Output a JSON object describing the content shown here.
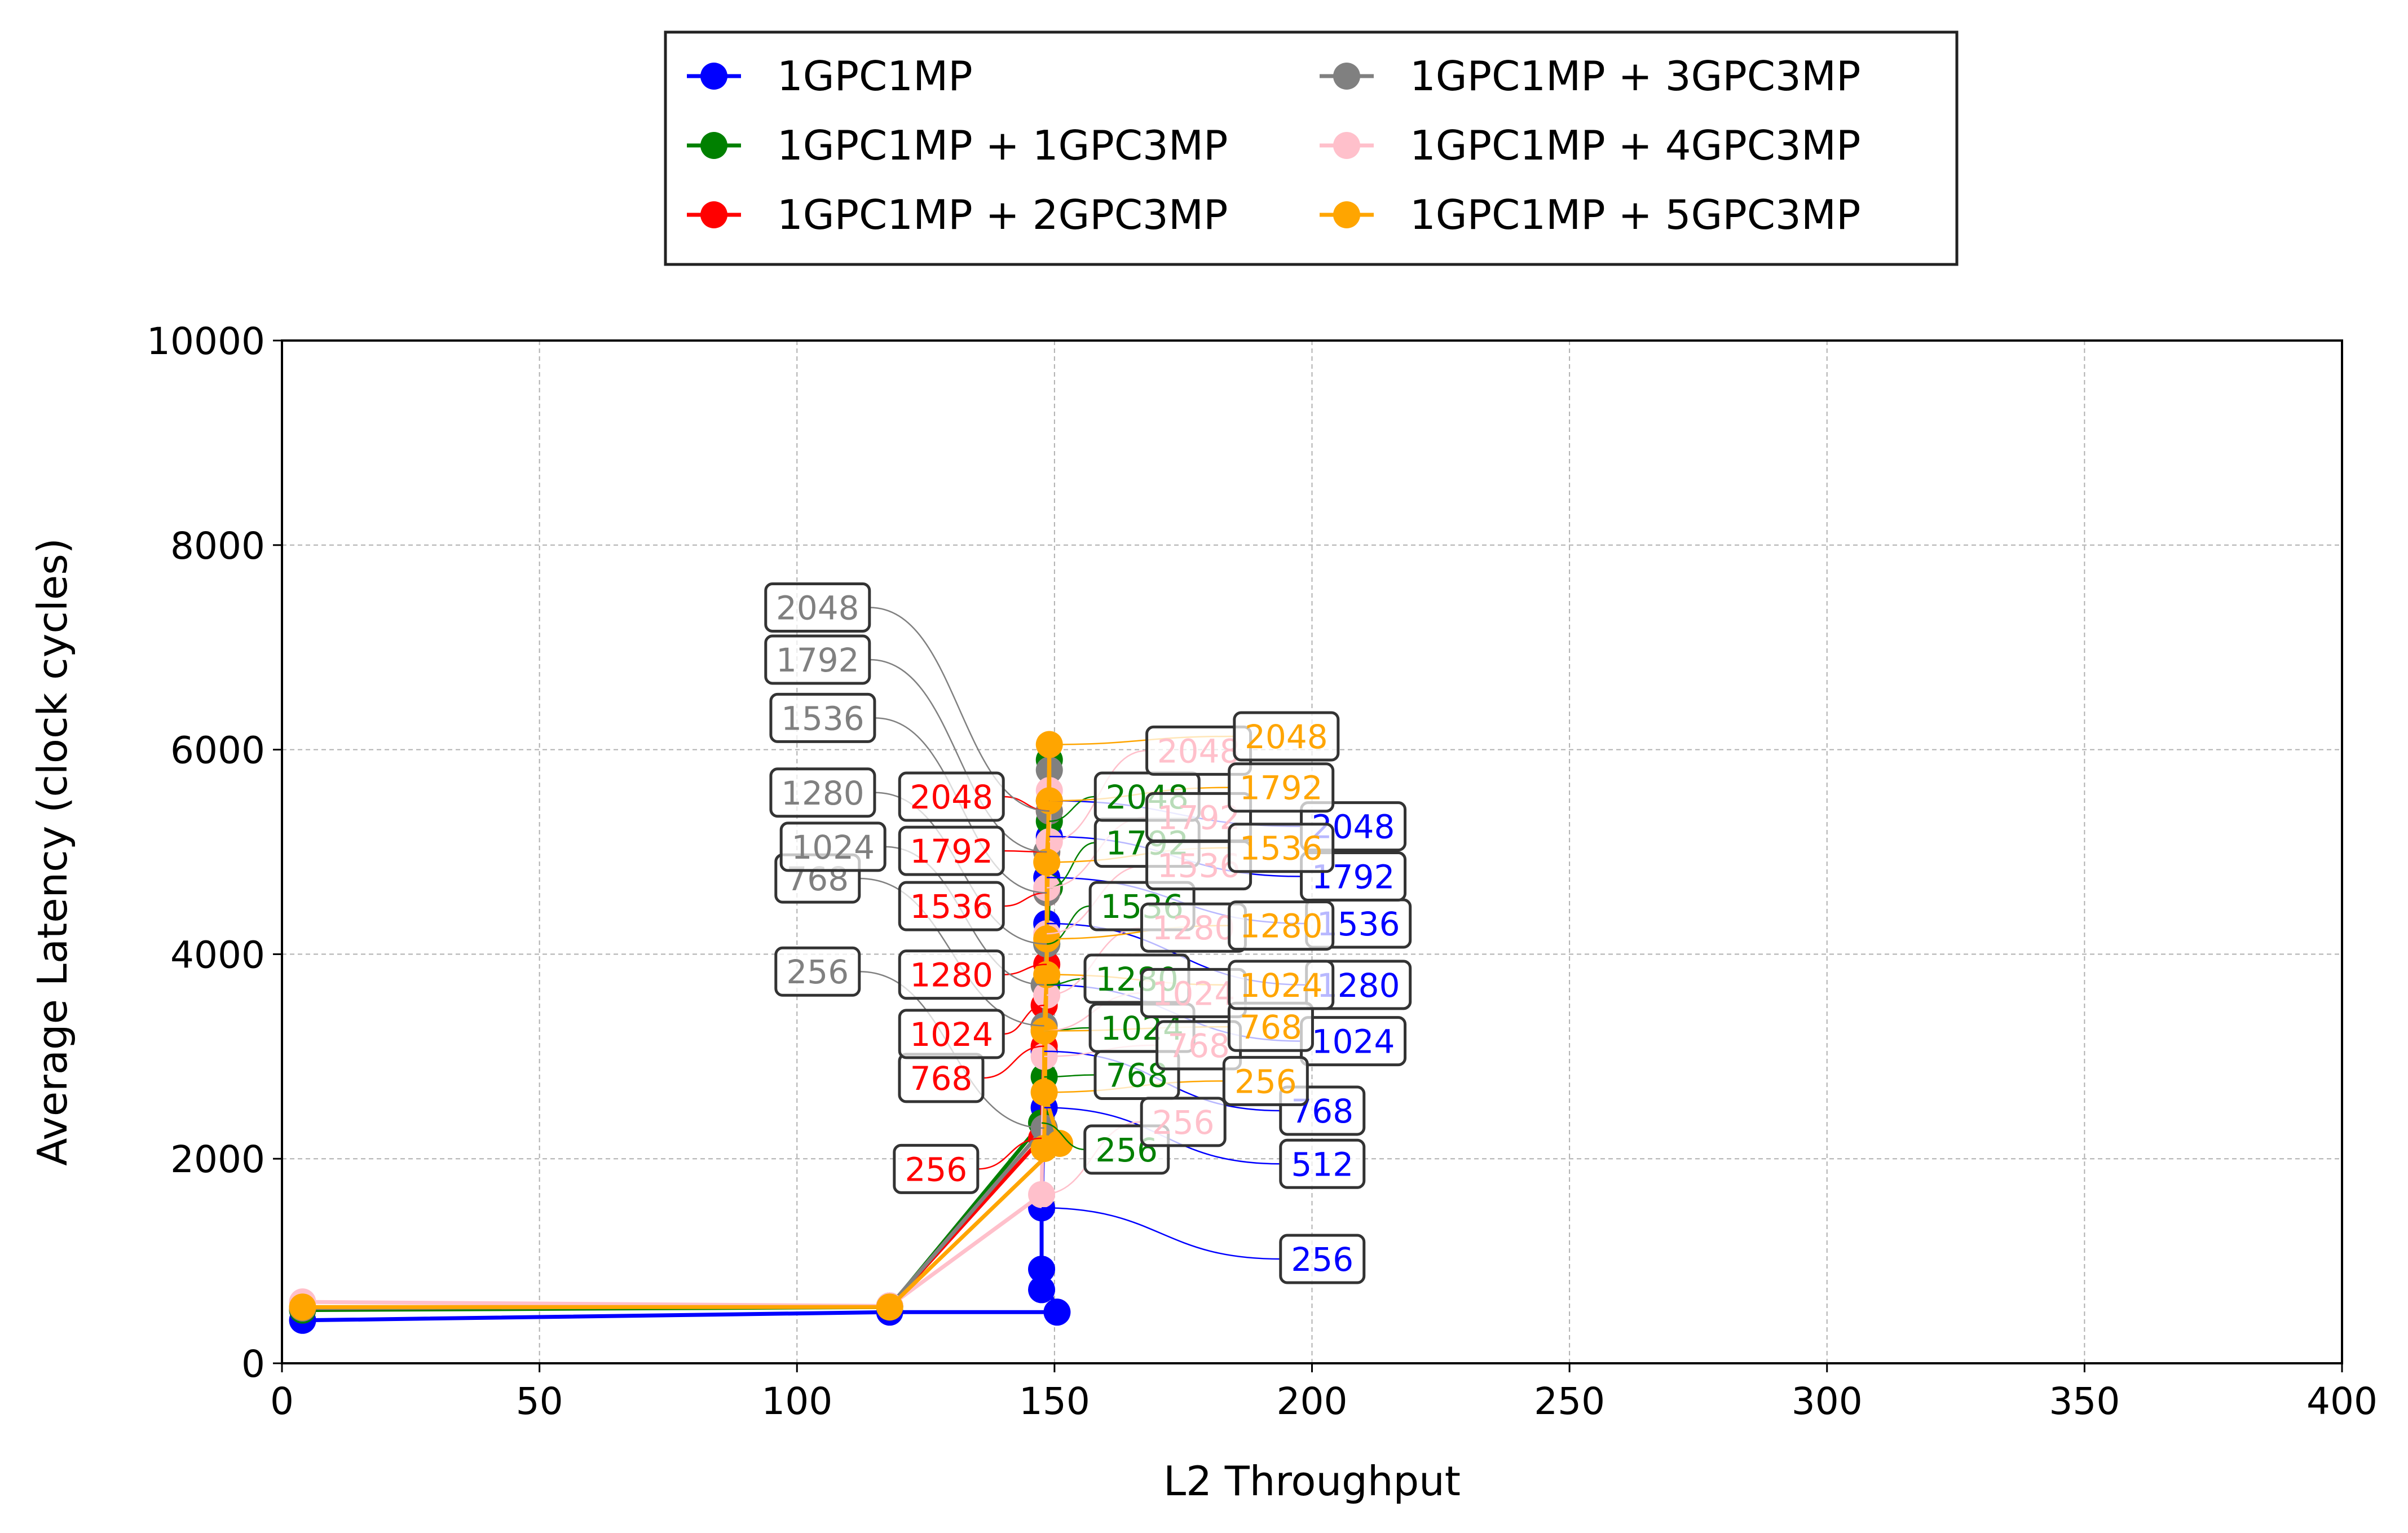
{
  "chart_data": {
    "type": "line",
    "title": "",
    "xlabel": "L2 Throughput",
    "ylabel": "Average Latency (clock cycles)",
    "xlim": [
      0,
      400
    ],
    "ylim": [
      0,
      10000
    ],
    "xticks": [
      "0",
      "50",
      "100",
      "150",
      "200",
      "250",
      "300",
      "350",
      "400"
    ],
    "yticks": [
      "0",
      "2000",
      "4000",
      "6000",
      "8000",
      "10000"
    ],
    "grid": true,
    "legend_position": "top-center, outside plot, 2 columns",
    "series": [
      {
        "name": "1GPC1MP",
        "color": "#0000ff",
        "x": [
          4,
          118,
          150.5,
          147.5,
          147.5,
          147.5,
          148,
          148,
          148.5,
          148.5,
          148.5,
          149,
          149
        ],
        "y": [
          420,
          500,
          500,
          920,
          720,
          1520,
          2500,
          3050,
          3700,
          4300,
          4750,
          5150,
          5500
        ],
        "labels": [
          "",
          "",
          "",
          "",
          "",
          "256",
          "512",
          "768",
          "1024",
          "1280",
          "1536",
          "1792",
          "2048"
        ]
      },
      {
        "name": "1GPC1MP + 1GPC3MP",
        "color": "#008000",
        "x": [
          4,
          118,
          147.5,
          148,
          148,
          148.5,
          148.5,
          149,
          149,
          149
        ],
        "y": [
          520,
          550,
          2350,
          2800,
          3250,
          3700,
          4100,
          4650,
          5300,
          5900
        ],
        "labels": [
          "",
          "",
          "256",
          "768",
          "1024",
          "1280",
          "1536",
          "1792",
          "2048",
          ""
        ]
      },
      {
        "name": "1GPC1MP + 2GPC3MP",
        "color": "#ff0000",
        "x": [
          4,
          118,
          147.5,
          148,
          148,
          148.5,
          148.5,
          148.5,
          149
        ],
        "y": [
          540,
          560,
          2200,
          3100,
          3500,
          3900,
          4600,
          5000,
          5400
        ],
        "labels": [
          "",
          "",
          "256",
          "768",
          "1024",
          "1280",
          "1536",
          "1792",
          "2048"
        ]
      },
      {
        "name": "1GPC1MP + 3GPC3MP",
        "color": "#808080",
        "x": [
          4,
          118,
          148,
          148,
          148,
          148.5,
          148.5,
          148.5,
          149,
          149
        ],
        "y": [
          540,
          560,
          2300,
          3300,
          3700,
          4100,
          4600,
          5000,
          5400,
          5800
        ],
        "labels": [
          "",
          "",
          "256",
          "768",
          "1024",
          "1280",
          "1536",
          "1792",
          "2048",
          ""
        ]
      },
      {
        "name": "1GPC1MP + 4GPC3MP",
        "color": "#ffc0cb",
        "x": [
          4,
          118,
          147.5,
          148,
          148,
          148.5,
          148.5,
          148.5,
          149,
          149
        ],
        "y": [
          600,
          560,
          1650,
          3000,
          3250,
          3600,
          4200,
          4650,
          5100,
          5600
        ],
        "labels": [
          "",
          "",
          "256",
          "768",
          "1024",
          "1280",
          "1536",
          "1792",
          "2048",
          ""
        ]
      },
      {
        "name": "1GPC1MP + 5GPC3MP",
        "color": "#ffa500",
        "x": [
          4,
          118,
          151,
          148,
          148,
          148.5,
          148.5,
          148.5,
          149,
          149,
          148
        ],
        "y": [
          550,
          550,
          2150,
          2650,
          3250,
          3800,
          4150,
          4900,
          5500,
          6050,
          2100
        ],
        "labels": [
          "",
          "",
          "",
          "256",
          "768",
          "1024",
          "1280",
          "1536",
          "1792",
          "2048",
          ""
        ]
      }
    ]
  }
}
